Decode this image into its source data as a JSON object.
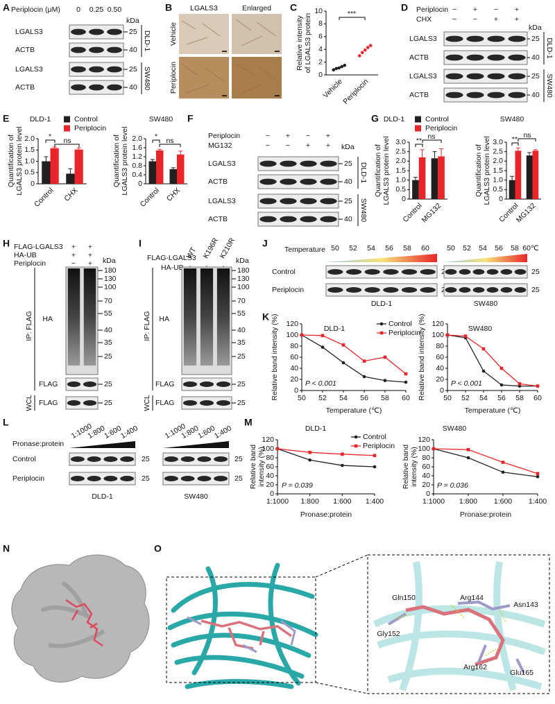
{
  "panel_labels": [
    "A",
    "B",
    "C",
    "D",
    "E",
    "F",
    "G",
    "H",
    "I",
    "J",
    "K",
    "L",
    "M",
    "N",
    "O"
  ],
  "A": {
    "treatment": "Periplocin (μM)",
    "doses": [
      "0",
      "0.25",
      "0.50"
    ],
    "kda": "kDa",
    "rows": [
      "LGALS3",
      "ACTB",
      "LGALS3",
      "ACTB"
    ],
    "markers": [
      25,
      40,
      25,
      40
    ],
    "cell_lines": [
      "DLD-1",
      "SW480"
    ]
  },
  "B": {
    "columns": [
      "LGALS3",
      "Enlarged"
    ],
    "rows": [
      "Vehicle",
      "Periplocin"
    ]
  },
  "D": {
    "treatments": [
      {
        "name": "Periplocin",
        "signs": [
          "−",
          "+",
          "−",
          "+"
        ]
      },
      {
        "name": "CHX",
        "signs": [
          "−",
          "−",
          "+",
          "+"
        ]
      }
    ],
    "kda": "kDa",
    "rows": [
      "LGALS3",
      "ACTB",
      "LGALS3",
      "ACTB"
    ],
    "markers": [
      25,
      40,
      25,
      40
    ],
    "cell_lines": [
      "DLD-1",
      "SW480"
    ]
  },
  "F": {
    "treatments": [
      {
        "name": "Periplocin",
        "signs": [
          "−",
          "+",
          "−",
          "+"
        ]
      },
      {
        "name": "MG132",
        "signs": [
          "−",
          "−",
          "+",
          "+"
        ]
      }
    ],
    "kda": "kDa",
    "rows": [
      "LGALS3",
      "ACTB",
      "LGALS3",
      "ACTB"
    ],
    "markers": [
      25,
      40,
      25,
      40
    ],
    "cell_lines": [
      "DLD-1",
      "SW480"
    ]
  },
  "H": {
    "treatments": [
      {
        "name": "FLAG-LGALS3",
        "signs": [
          "+",
          "+"
        ]
      },
      {
        "name": "HA-UB",
        "signs": [
          "+",
          "+"
        ]
      },
      {
        "name": "Periplocin",
        "signs": [
          "−",
          "+"
        ]
      }
    ],
    "kda": "kDa",
    "markers": [
      180,
      130,
      100,
      70,
      55,
      40,
      35,
      25
    ],
    "ha": "HA",
    "ip": "IP: FLAG",
    "flag": [
      "FLAG",
      "FLAG"
    ],
    "flag_markers": [
      25,
      25
    ],
    "wcl": "WCL"
  },
  "I": {
    "construct": "FLAG-LGALS3",
    "variants": [
      "WT",
      "K196R",
      "K210R"
    ],
    "treatments": [
      {
        "name": "HA-UB",
        "signs": [
          "+",
          "+",
          "+"
        ]
      }
    ],
    "kda": "kDa",
    "markers": [
      180,
      130,
      100,
      70,
      55,
      40,
      35,
      25
    ],
    "ha": "HA",
    "ip": "IP: FLAG",
    "flag": [
      "FLAG",
      "FLAG"
    ],
    "flag_markers": [
      25,
      25
    ],
    "wcl": "WCL"
  },
  "J": {
    "temperature": "Temperature",
    "dld1_temps": [
      "50",
      "52",
      "54",
      "56",
      "58",
      "60"
    ],
    "sw480_temps": [
      "50",
      "52",
      "54",
      "56",
      "58",
      "60℃"
    ],
    "rows": [
      "Control",
      "Periplocin"
    ],
    "markers": [
      25,
      25,
      25,
      25
    ],
    "cell_lines": [
      "DLD-1",
      "SW480"
    ]
  },
  "L": {
    "label": "Pronase:protein",
    "dld1_ratios": [
      "1:1000",
      "1:800",
      "1:600",
      "1:400"
    ],
    "sw480_ratios": [
      "1:1000",
      "1:800",
      "1:600",
      "1:400"
    ],
    "rows": [
      "Control",
      "Periplocin"
    ],
    "markers": [
      25,
      25,
      25,
      25
    ],
    "cell_lines": [
      "DLD-1",
      "SW480"
    ]
  },
  "O": {
    "residues": [
      "Gln150",
      "Arg144",
      "Asn143",
      "Gly152",
      "Arg162",
      "Glu165"
    ]
  },
  "chart_data": [
    {
      "type": "dot",
      "ylabel": [
        "Relative intensity",
        "of LGALS3 protein"
      ],
      "categories": [
        "Vehicle",
        "Periplocin"
      ],
      "values": [
        [
          0.8,
          1.0,
          1.1,
          1.3,
          1.5
        ],
        [
          3.0,
          3.5,
          3.9,
          4.3,
          4.6
        ]
      ],
      "colors": [
        "#231f20",
        "#e8262a"
      ],
      "ylim": [
        0,
        10
      ],
      "yticks": [
        0,
        2,
        4,
        6,
        8,
        10
      ],
      "annotations": [
        "***"
      ]
    },
    {
      "type": "bar",
      "title": "DLD-1",
      "ylabel": [
        "Quantification of",
        "LGALS3 protein level"
      ],
      "categories": [
        "Control",
        "CHX"
      ],
      "series": [
        {
          "name": "Control",
          "color": "#231f20",
          "values": [
            1.0,
            0.45
          ],
          "errors": [
            0.2,
            0.22
          ]
        },
        {
          "name": "Periplocin",
          "color": "#e8262a",
          "values": [
            1.58,
            1.52
          ],
          "errors": [
            0.05,
            0.08
          ]
        }
      ],
      "ylim": [
        0,
        2
      ],
      "yticks": [
        0,
        0.5,
        {
          "value": 1,
          "label": "1.0"
        },
        1.5,
        {
          "value": 2,
          "label": "2.0"
        }
      ],
      "annotations": [
        "*",
        "ns"
      ]
    },
    {
      "type": "bar",
      "title": "SW480",
      "ylabel": [
        "Quantification of",
        "LGALS3 protein level"
      ],
      "categories": [
        "Control",
        "CHX"
      ],
      "series": [
        {
          "color": "#231f20",
          "values": [
            1.0,
            0.65
          ],
          "errors": [
            0.08,
            0.06
          ]
        },
        {
          "color": "#e8262a",
          "values": [
            1.48,
            1.3
          ],
          "errors": [
            0.05,
            0.15
          ]
        }
      ],
      "ylim": [
        0,
        2
      ],
      "yticks": [
        0,
        0.4,
        0.8,
        1.2,
        1.6,
        {
          "value": 2,
          "label": "2.0"
        }
      ],
      "annotations": [
        "*",
        "ns"
      ]
    },
    {
      "type": "bar",
      "title": "DLD-1",
      "ylabel": [
        "Quantification of",
        "LGALS3 protein level"
      ],
      "categories": [
        "Control",
        "MG132"
      ],
      "series": [
        {
          "name": "Control",
          "color": "#231f20",
          "values": [
            1.0,
            2.15
          ],
          "errors": [
            0.15,
            0.35
          ]
        },
        {
          "name": "Periplocin",
          "color": "#e8262a",
          "values": [
            2.2,
            2.25
          ],
          "errors": [
            0.4,
            0.4
          ]
        }
      ],
      "ylim": [
        0,
        3
      ],
      "yticks": [
        0,
        0.5,
        {
          "value": 1,
          "label": "1.0"
        },
        1.5,
        {
          "value": 2,
          "label": "2.0"
        },
        2.5,
        {
          "value": 3,
          "label": "3.0"
        }
      ],
      "annotations": [
        "**",
        "ns"
      ]
    },
    {
      "type": "bar",
      "title": "SW480",
      "ylabel": [
        "Quantification of",
        "LGALS3 protein level"
      ],
      "categories": [
        "Control",
        "MG132"
      ],
      "series": [
        {
          "color": "#231f20",
          "values": [
            1.0,
            2.3
          ],
          "errors": [
            0.2,
            0.15
          ]
        },
        {
          "color": "#e8262a",
          "values": [
            2.55,
            2.55
          ],
          "errors": [
            0.15,
            0.05
          ]
        }
      ],
      "ylim": [
        0,
        3
      ],
      "yticks": [
        0,
        0.5,
        {
          "value": 1,
          "label": "1.0"
        },
        1.5,
        {
          "value": 2,
          "label": "2.0"
        },
        2.5,
        {
          "value": 3,
          "label": "3.0"
        }
      ],
      "annotations": [
        "**",
        "ns"
      ]
    },
    {
      "type": "line",
      "title": "DLD-1",
      "ylabel": "Relative band intensity (%)",
      "xlabel": "Temperature (℃)",
      "x": [
        50,
        52,
        54,
        56,
        58,
        60
      ],
      "xlim": [
        50,
        60
      ],
      "xticks": [
        50,
        52,
        54,
        56,
        58,
        60
      ],
      "series": [
        {
          "name": "Control",
          "color": "#231f20",
          "values": [
            100,
            78,
            50,
            25,
            18,
            15
          ]
        },
        {
          "name": "Periplocin",
          "color": "#e8262a",
          "values": [
            100,
            99,
            82,
            53,
            60,
            30
          ]
        }
      ],
      "ylim": [
        0,
        120
      ],
      "yticks": [
        0,
        20,
        40,
        60,
        80,
        100,
        120
      ],
      "annotations": [
        "P < 0.001"
      ]
    },
    {
      "type": "line",
      "title": "SW480",
      "ylabel": "Relative band intensity (%)",
      "xlabel": "Temperature (℃)",
      "x": [
        50,
        52,
        54,
        56,
        58,
        60
      ],
      "xlim": [
        50,
        60
      ],
      "xticks": [
        50,
        52,
        54,
        56,
        58,
        60
      ],
      "series": [
        {
          "color": "#231f20",
          "values": [
            100,
            95,
            35,
            10,
            8,
            8
          ]
        },
        {
          "color": "#e8262a",
          "values": [
            100,
            98,
            75,
            40,
            12,
            8
          ]
        }
      ],
      "ylim": [
        0,
        120
      ],
      "yticks": [
        0,
        20,
        40,
        60,
        80,
        100,
        120
      ],
      "annotations": [
        "P < 0.001"
      ]
    },
    {
      "type": "line",
      "title": "DLD-1",
      "ylabel": [
        "Relative band",
        "intensity (%)"
      ],
      "xlabel": "Pronase:protein",
      "categories": [
        "1:1000",
        "1:800",
        "1:600",
        "1:400"
      ],
      "series": [
        {
          "name": "Control",
          "color": "#231f20",
          "values": [
            100,
            75,
            63,
            60
          ]
        },
        {
          "name": "Periplocin",
          "color": "#e8262a",
          "values": [
            100,
            92,
            88,
            85
          ]
        }
      ],
      "ylim": [
        0,
        120
      ],
      "yticks": [
        0,
        20,
        40,
        60,
        80,
        100,
        120
      ],
      "annotations": [
        "P = 0.039"
      ]
    },
    {
      "type": "line",
      "title": "SW480",
      "ylabel": [
        "Relative band",
        "intensity (%)"
      ],
      "xlabel": "Pronase:protein",
      "categories": [
        "1:1000",
        "1:800",
        "1:600",
        "1:400"
      ],
      "series": [
        {
          "color": "#231f20",
          "values": [
            100,
            80,
            48,
            38
          ]
        },
        {
          "color": "#e8262a",
          "values": [
            100,
            98,
            70,
            45
          ]
        }
      ],
      "ylim": [
        0,
        120
      ],
      "yticks": [
        0,
        20,
        40,
        60,
        80,
        100,
        120
      ],
      "annotations": [
        "P = 0.036"
      ]
    }
  ]
}
